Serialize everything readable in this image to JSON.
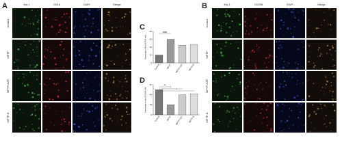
{
  "panel_a": {
    "letter": "A",
    "columns": [
      "Iba-1",
      "CD16",
      "DAPI",
      "Merge"
    ],
    "rows": [
      "Control",
      "MPTP",
      "MPTP-DZF",
      "MPTP-B"
    ]
  },
  "panel_b": {
    "letter": "B",
    "columns": [
      "Iba-1",
      "CD206",
      "DAPI",
      "Merge"
    ],
    "rows": [
      "Control",
      "MPTP",
      "MPTP-DZF",
      "MPTP-B"
    ]
  },
  "chart_data": [
    {
      "type": "bar",
      "letter": "C",
      "y_label": "Percentage of Iba-1/CD16 cells",
      "categories": [
        "Control",
        "MPTP",
        "MPTP-DZF",
        "MPTP-B"
      ],
      "values": [
        20,
        60,
        45,
        47
      ],
      "colors": [
        "#777777",
        "#999999",
        "#cccccc",
        "#dddddd"
      ],
      "ylim": [
        0,
        80
      ],
      "yticks": [
        0,
        20,
        40,
        60,
        80
      ],
      "annotations": [
        "###"
      ]
    },
    {
      "type": "bar",
      "letter": "D",
      "y_label": "Percentage of Iba-1/CD206 cells",
      "categories": [
        "Control",
        "MPTP",
        "MPTP-DZF",
        "MPTP-B"
      ],
      "values": [
        50,
        20,
        40,
        42
      ],
      "colors": [
        "#777777",
        "#999999",
        "#cccccc",
        "#dddddd"
      ],
      "ylim": [
        0,
        60
      ],
      "yticks": [
        0,
        20,
        40,
        60
      ],
      "annotations": [
        "**",
        "*",
        "*"
      ]
    }
  ]
}
